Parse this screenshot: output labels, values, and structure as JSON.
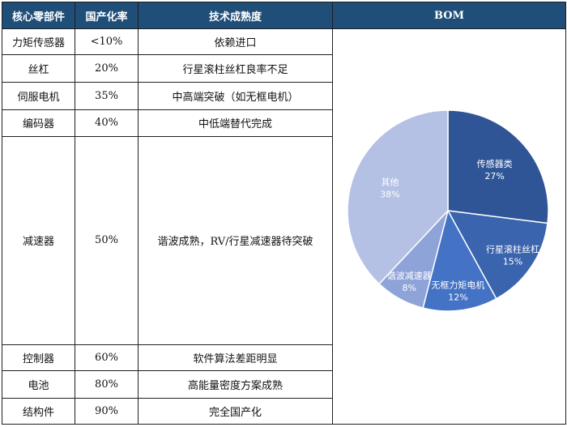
{
  "table": {
    "headers": [
      "核心零部件",
      "国产化率",
      "技术成熟度",
      "BOM"
    ],
    "rows": [
      {
        "part": "力矩传感器",
        "rate": "<10%",
        "maturity": "依赖进口"
      },
      {
        "part": "丝杠",
        "rate": "20%",
        "maturity": "行星滚柱丝杠良率不足"
      },
      {
        "part": "伺服电机",
        "rate": "35%",
        "maturity": "中高端突破（如无框电机）"
      },
      {
        "part": "编码器",
        "rate": "40%",
        "maturity": "中低端替代完成"
      },
      {
        "part": "减速器",
        "rate": "50%",
        "maturity": "谐波成熟，RV/行星减速器待突破"
      },
      {
        "part": "控制器",
        "rate": "60%",
        "maturity": "软件算法差距明显"
      },
      {
        "part": "电池",
        "rate": "80%",
        "maturity": "高能量密度方案成熟"
      },
      {
        "part": "结构件",
        "rate": "90%",
        "maturity": "完全国产化"
      }
    ]
  },
  "chart_data": {
    "type": "pie",
    "title": "BOM",
    "slices": [
      {
        "label": "传感器类",
        "value": 27,
        "pct_label": "27%",
        "color": "#2f5597"
      },
      {
        "label": "行星滚柱丝杠",
        "value": 15,
        "pct_label": "15%",
        "color": "#3a64ad"
      },
      {
        "label": "无框力矩电机",
        "value": 12,
        "pct_label": "12%",
        "color": "#4472c4"
      },
      {
        "label": "谐波减速器",
        "value": 8,
        "pct_label": "8%",
        "color": "#8ea3d8"
      },
      {
        "label": "其他",
        "value": 38,
        "pct_label": "38%",
        "color": "#b4c0e4"
      }
    ]
  }
}
